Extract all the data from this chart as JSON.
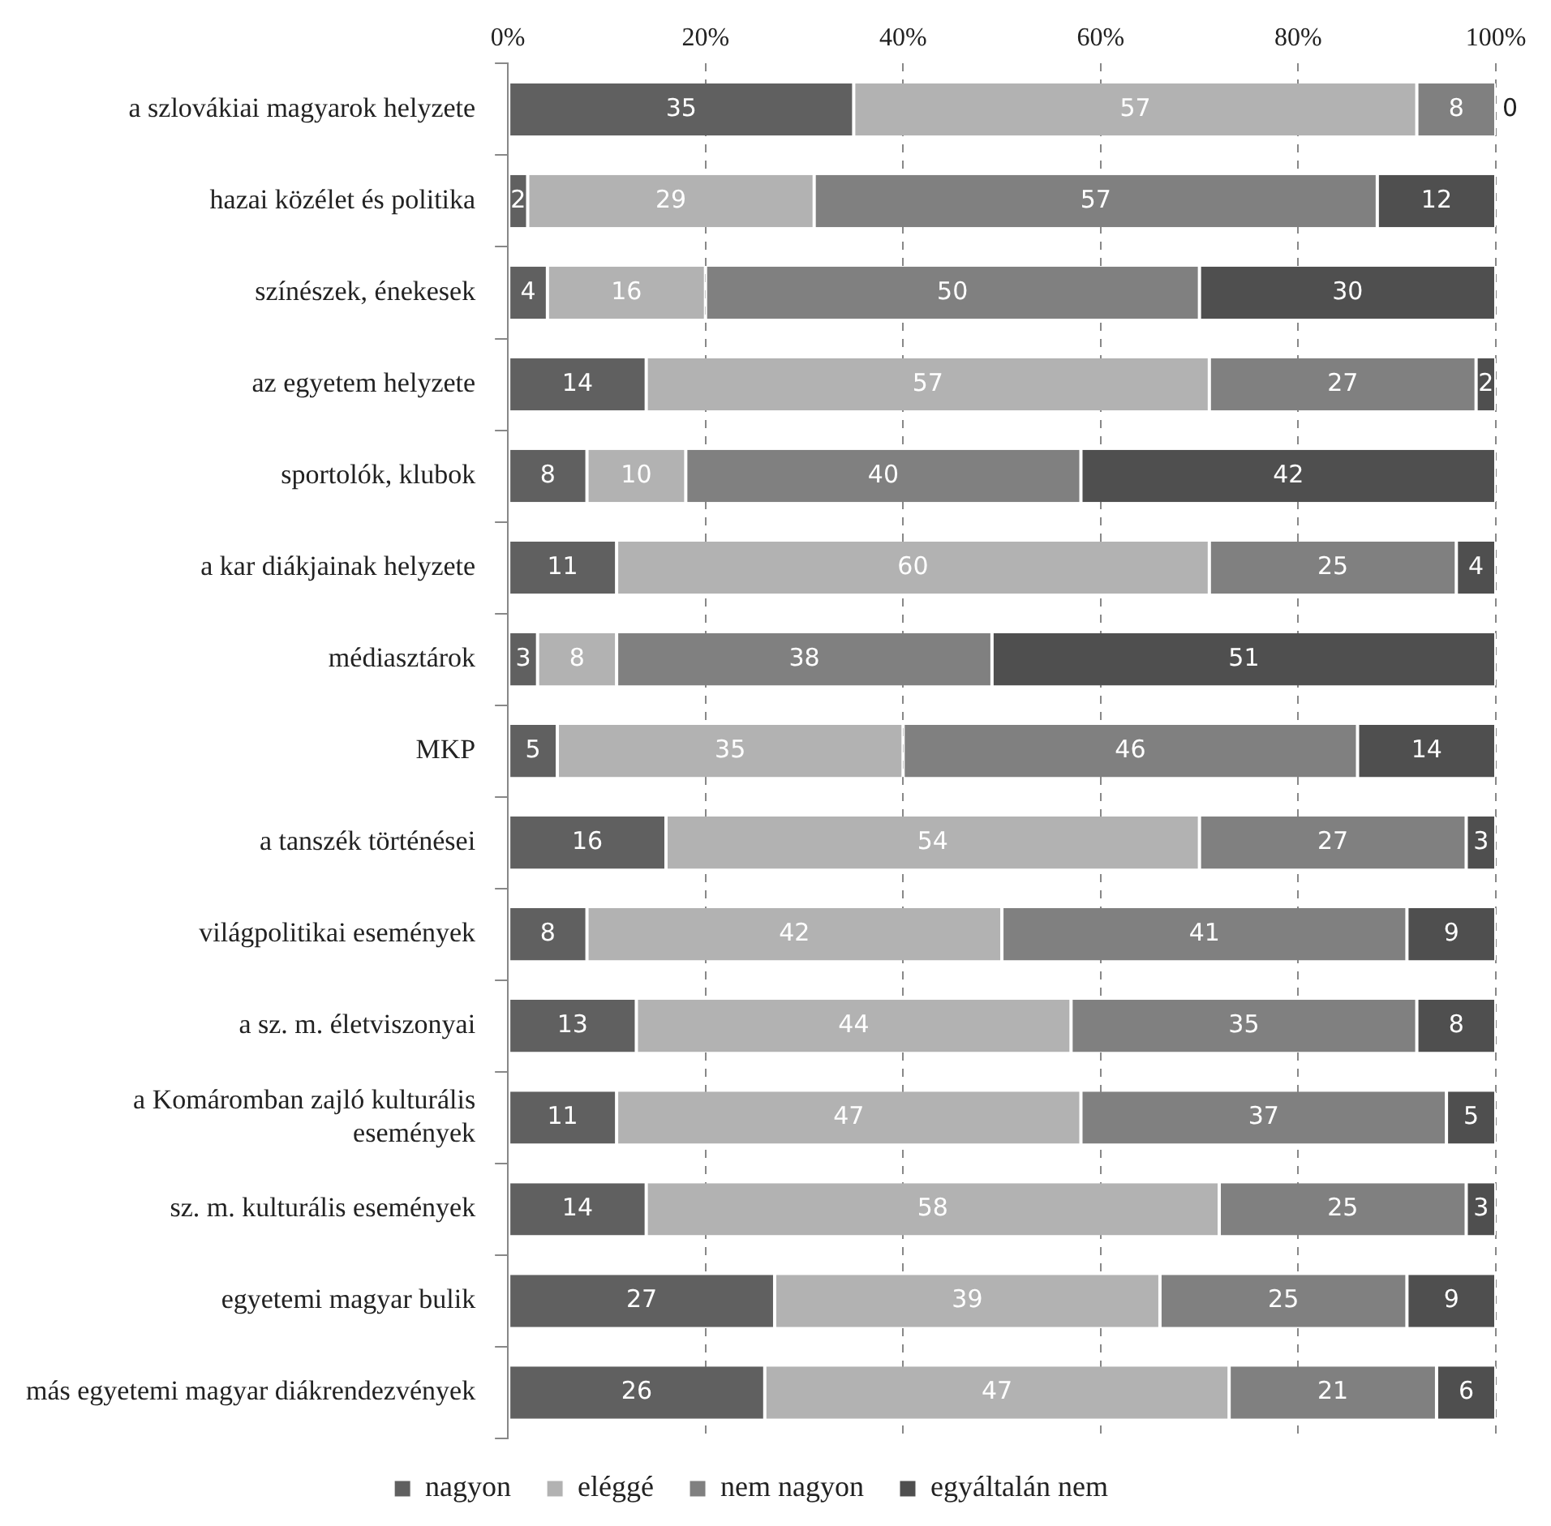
{
  "chart_data": {
    "type": "bar",
    "orientation": "horizontal",
    "stacked": true,
    "data_labels": true,
    "grid": "x",
    "legend": "bottom",
    "categories": [
      "a szlovákiai magyarok helyzete",
      "hazai közélet és politika",
      "színészek, énekesek",
      "az egyetem helyzete",
      "sportolók, klubok",
      "a kar diákjainak helyzete",
      "médiasztárok",
      "MKP",
      "a tanszék történései",
      "világpolitikai események",
      "a sz. m. életviszonyai",
      "a Komáromban zajló kulturális események",
      "sz. m. kulturális események",
      "egyetemi magyar bulik",
      "más egyetemi magyar diákrendezvények"
    ],
    "series": [
      {
        "name": "nagyon",
        "color": "#606060",
        "values": [
          35,
          2,
          4,
          14,
          8,
          11,
          3,
          5,
          16,
          8,
          13,
          11,
          14,
          27,
          26
        ]
      },
      {
        "name": "eléggé",
        "color": "#b2b2b2",
        "values": [
          57,
          29,
          16,
          57,
          10,
          60,
          8,
          35,
          54,
          42,
          44,
          47,
          58,
          39,
          47
        ]
      },
      {
        "name": "nem nagyon",
        "color": "#808080",
        "values": [
          8,
          57,
          50,
          27,
          40,
          25,
          38,
          46,
          27,
          41,
          35,
          37,
          25,
          25,
          21
        ]
      },
      {
        "name": "egyáltalán nem",
        "color": "#4f4f4f",
        "values": [
          0,
          12,
          30,
          2,
          42,
          4,
          51,
          14,
          3,
          9,
          8,
          5,
          3,
          9,
          6
        ]
      }
    ],
    "xlim": [
      0,
      100
    ],
    "xticks": [
      {
        "value": 0,
        "label": "0%"
      },
      {
        "value": 20,
        "label": "20%"
      },
      {
        "value": 40,
        "label": "40%"
      },
      {
        "value": 60,
        "label": "60%"
      },
      {
        "value": 80,
        "label": "80%"
      },
      {
        "value": 100,
        "label": "100%"
      }
    ]
  }
}
